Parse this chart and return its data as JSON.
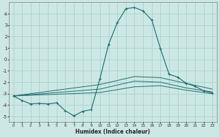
{
  "bg_color": "#cce8e4",
  "grid_color": "#aacfca",
  "line_color": "#1a6b6b",
  "xlabel": "Humidex (Indice chaleur)",
  "xlim": [
    -0.5,
    23.5
  ],
  "ylim": [
    -5.5,
    5.0
  ],
  "xticks": [
    0,
    1,
    2,
    3,
    4,
    5,
    6,
    7,
    8,
    9,
    10,
    11,
    12,
    13,
    14,
    15,
    16,
    17,
    18,
    19,
    20,
    21,
    22,
    23
  ],
  "yticks": [
    -5,
    -4,
    -3,
    -2,
    -1,
    0,
    1,
    2,
    3,
    4
  ],
  "curve_main_x": [
    0,
    1,
    2,
    3,
    4,
    5,
    6,
    7,
    8,
    9,
    10,
    11,
    12,
    13,
    14,
    15,
    16,
    17,
    18,
    19,
    20,
    21,
    22,
    23
  ],
  "curve_main_y": [
    -3.2,
    -3.6,
    -3.9,
    -3.85,
    -3.9,
    -3.8,
    -4.5,
    -4.95,
    -4.55,
    -4.4,
    -1.7,
    1.3,
    3.2,
    4.45,
    4.55,
    4.25,
    3.45,
    0.95,
    -1.3,
    -1.55,
    -2.1,
    -2.35,
    -2.75,
    -2.95
  ],
  "curve_upper_x": [
    0,
    10,
    14,
    17,
    20,
    23
  ],
  "curve_upper_y": [
    -3.2,
    -2.2,
    -1.5,
    -1.6,
    -2.1,
    -2.6
  ],
  "curve_lower_x": [
    0,
    10,
    14,
    17,
    20,
    23
  ],
  "curve_lower_y": [
    -3.2,
    -2.6,
    -1.9,
    -2.0,
    -2.5,
    -2.85
  ],
  "curve_bottom_x": [
    0,
    10,
    14,
    17,
    20,
    23
  ],
  "curve_bottom_y": [
    -3.2,
    -2.9,
    -2.4,
    -2.3,
    -2.7,
    -3.0
  ]
}
